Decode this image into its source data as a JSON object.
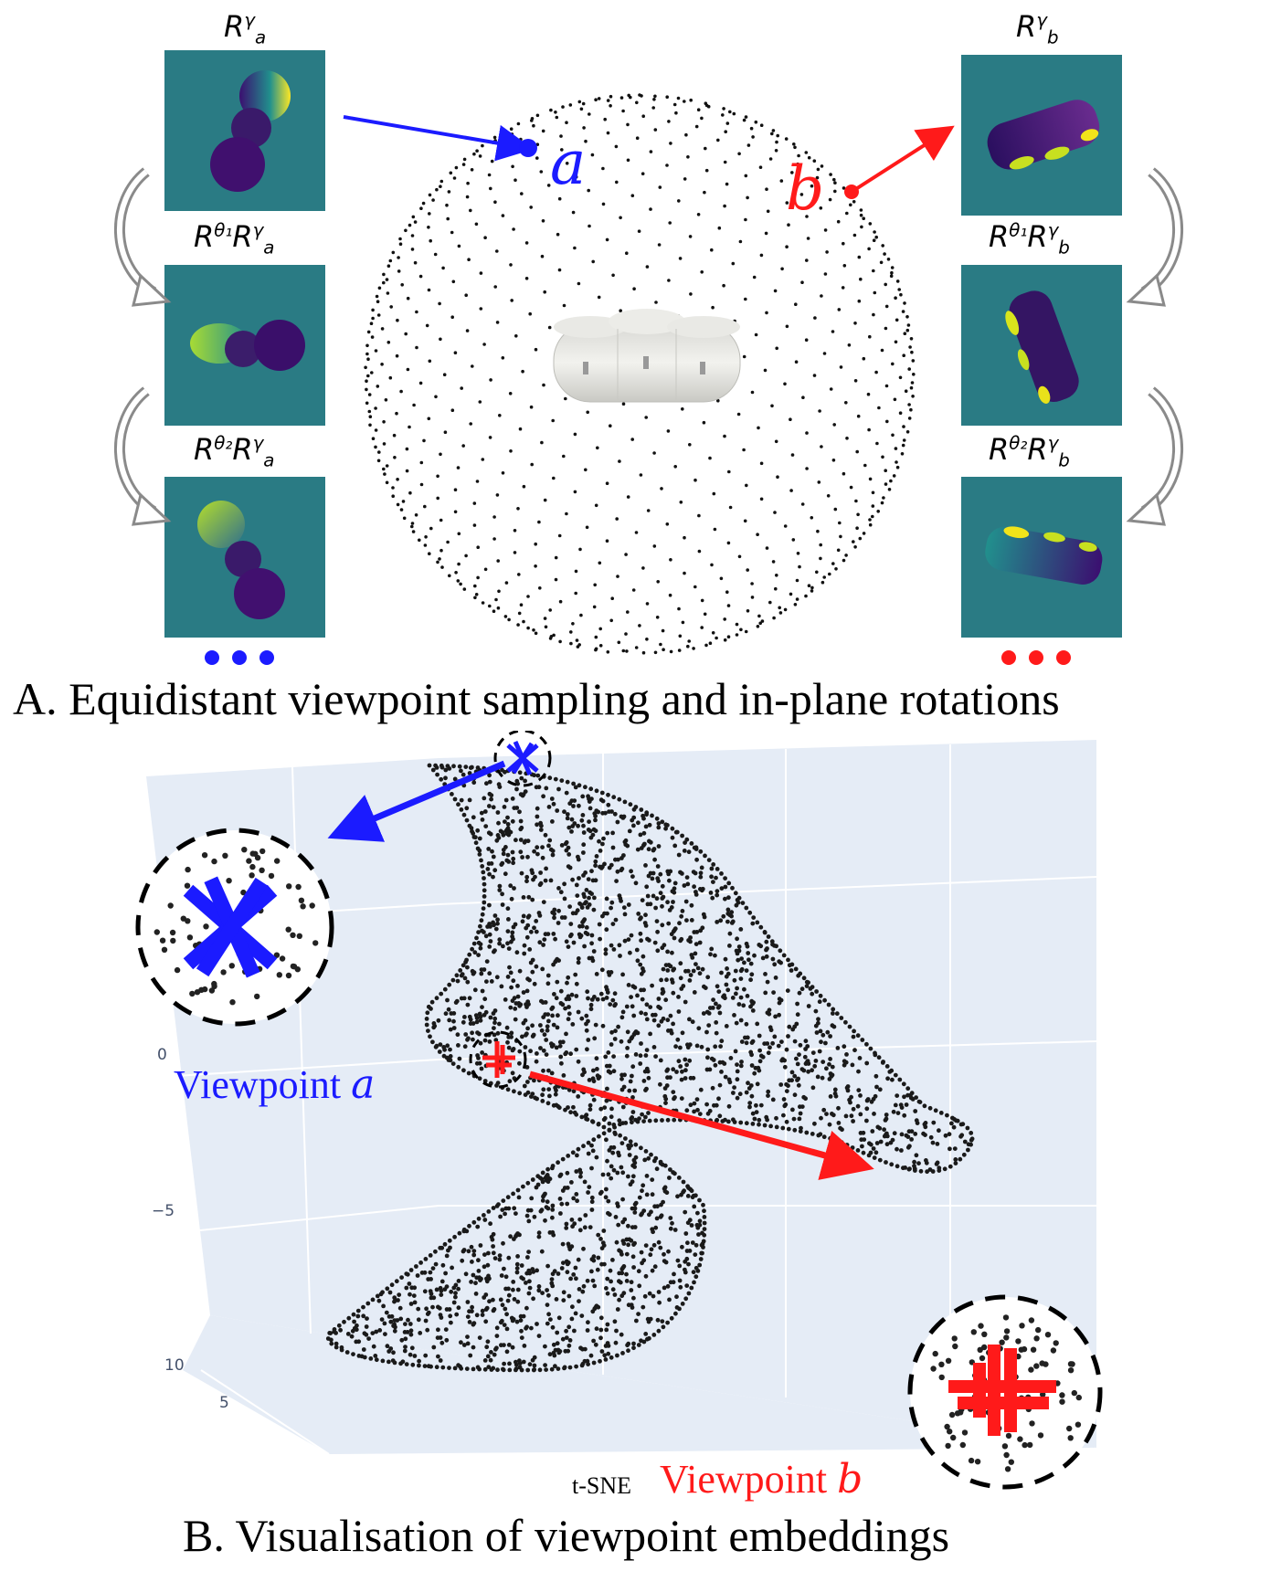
{
  "panel_a": {
    "caption": "A. Equidistant viewpoint sampling and in-plane rotations",
    "point_a": {
      "letter": "a",
      "color": "#1b1bff"
    },
    "point_b": {
      "letter": "b",
      "color": "#ff1a1a"
    },
    "left_column": {
      "labels": [
        {
          "base": "R",
          "sup": "γ",
          "sub": "a"
        },
        {
          "base": "R",
          "theta": "θ₁",
          "base2": "R",
          "sup": "γ",
          "sub": "a"
        },
        {
          "base": "R",
          "theta": "θ₂",
          "base2": "R",
          "sup": "γ",
          "sub": "a"
        }
      ],
      "ellipsis_color": "#1b1bff"
    },
    "right_column": {
      "labels": [
        {
          "base": "R",
          "sup": "γ",
          "sub": "b"
        },
        {
          "base": "R",
          "theta": "θ₁",
          "base2": "R",
          "sup": "γ",
          "sub": "b"
        },
        {
          "base": "R",
          "theta": "θ₂",
          "base2": "R",
          "sup": "γ",
          "sub": "b"
        }
      ],
      "ellipsis_color": "#ff1a1a"
    },
    "tile_background": "#2a7b84"
  },
  "panel_b": {
    "caption": "B. Visualisation of viewpoint embeddings",
    "axis_title": "t-SNE",
    "ticks_vertical": [
      "0",
      "−5"
    ],
    "ticks_depth": [
      "10",
      "5"
    ],
    "viewpoint_a_label": {
      "text": "Viewpoint",
      "letter": "a",
      "color": "#1b1bff"
    },
    "viewpoint_b_label": {
      "text": "Viewpoint",
      "letter": "b",
      "color": "#ff1a1a"
    },
    "plot_background": "#e5ecf6"
  }
}
